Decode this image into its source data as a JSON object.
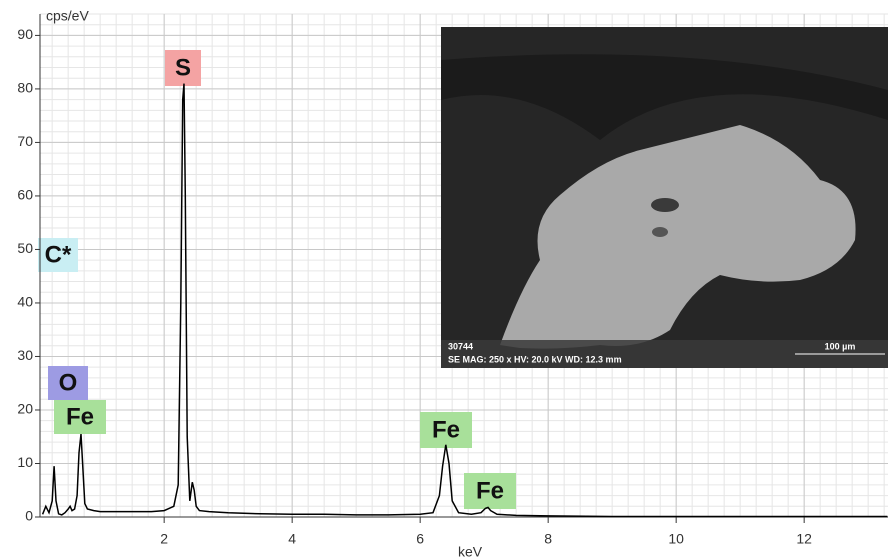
{
  "chart_data": {
    "type": "line",
    "y_label": "cps/eV",
    "x_label": "keV",
    "x": [
      0.1,
      0.15,
      0.2,
      0.25,
      0.28,
      0.31,
      0.35,
      0.4,
      0.45,
      0.5,
      0.53,
      0.56,
      0.6,
      0.64,
      0.67,
      0.7,
      0.73,
      0.76,
      0.8,
      0.9,
      1.0,
      1.2,
      1.5,
      1.8,
      2.0,
      2.15,
      2.22,
      2.26,
      2.29,
      2.31,
      2.33,
      2.36,
      2.4,
      2.44,
      2.47,
      2.5,
      2.55,
      2.7,
      3.0,
      3.5,
      4.0,
      4.5,
      5.0,
      5.5,
      6.0,
      6.2,
      6.3,
      6.35,
      6.4,
      6.45,
      6.5,
      6.6,
      6.8,
      6.95,
      7.02,
      7.06,
      7.1,
      7.2,
      7.5,
      8.0,
      9,
      10,
      11,
      12,
      13,
      13.3
    ],
    "values": [
      0.5,
      2,
      0.8,
      3,
      9.5,
      3,
      0.6,
      0.4,
      0.8,
      1.5,
      2,
      1.2,
      1.5,
      4,
      12,
      15.5,
      9,
      2.5,
      1.5,
      1.2,
      1,
      1,
      1,
      1,
      1.2,
      2,
      6,
      40,
      78,
      81,
      60,
      15,
      3,
      6.5,
      5,
      2,
      1.2,
      1,
      0.8,
      0.6,
      0.5,
      0.5,
      0.4,
      0.4,
      0.5,
      0.8,
      4,
      9.5,
      13.5,
      10,
      3,
      0.8,
      0.5,
      0.8,
      1.6,
      1.8,
      1.2,
      0.5,
      0.3,
      0.2,
      0.1,
      0.1,
      0.1,
      0.1,
      0.1,
      0.1
    ],
    "color": "#000000",
    "xlim": [
      0.06,
      13.31
    ],
    "ylim": [
      0,
      94
    ],
    "xticks": [
      2,
      4,
      6,
      8,
      10,
      12
    ],
    "yticks": [
      0,
      10,
      20,
      30,
      40,
      50,
      60,
      70,
      80,
      90
    ],
    "grid": true,
    "annotations": [
      {
        "text": "S",
        "color": "#f4a3a3"
      },
      {
        "text": "C*",
        "color": "#c9eef3"
      },
      {
        "text": "O",
        "color": "#9d9be3"
      },
      {
        "text": "Fe",
        "color": "#a8e09a"
      },
      {
        "text": "Fe",
        "color": "#a8e09a"
      },
      {
        "text": "Fe",
        "color": "#a8e09a"
      }
    ]
  },
  "inset": {
    "id": "30744",
    "info": "SE  MAG: 250 x  HV: 20.0 kV  WD: 12.3 mm",
    "scale": "100 µm"
  }
}
